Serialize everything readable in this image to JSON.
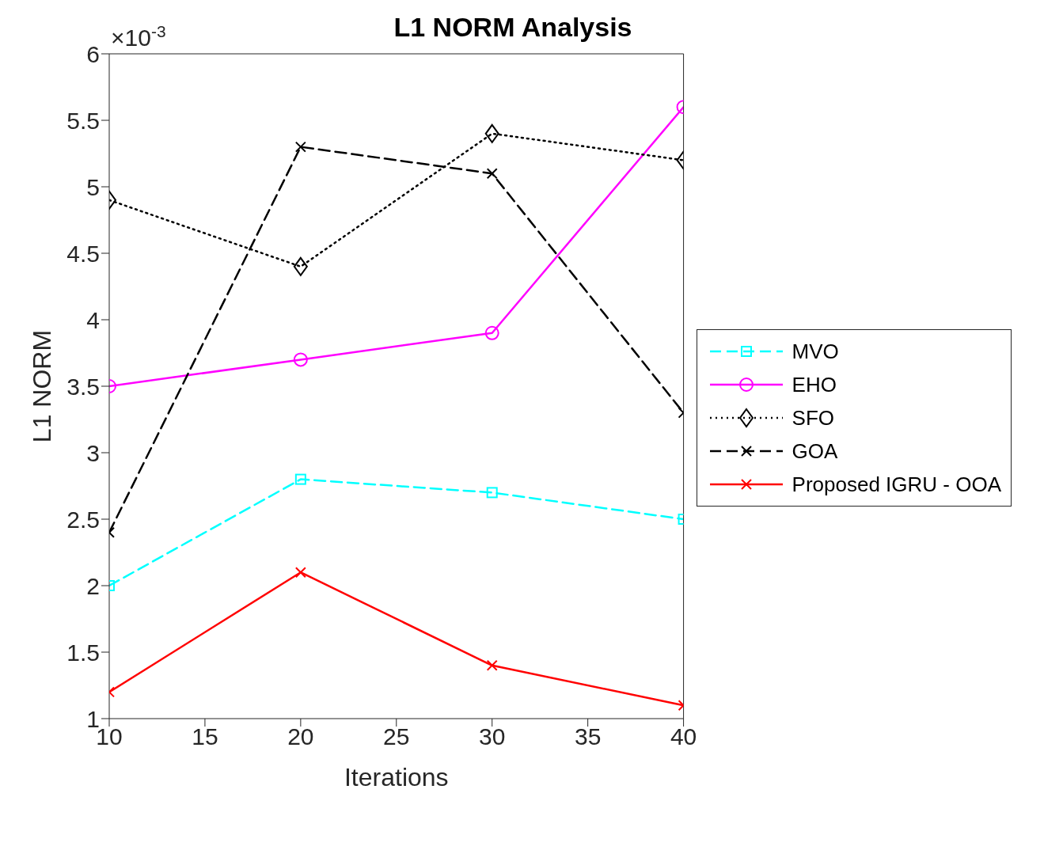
{
  "chart_data": {
    "type": "line",
    "title": "L1 NORM Analysis",
    "xlabel": "Iterations",
    "ylabel": "L1 NORM",
    "annotations": [
      "×10$^{-3}$"
    ],
    "x": [
      10,
      20,
      30,
      40
    ],
    "series": [
      {
        "name": "MVO",
        "color": "#00ffff",
        "values": [
          2.0,
          2.8,
          2.7,
          2.5
        ],
        "marker": "square",
        "line_style": "dashed"
      },
      {
        "name": "EHO",
        "color": "#ff00ff",
        "values": [
          3.5,
          3.7,
          3.9,
          5.6
        ],
        "marker": "circle",
        "line_style": "solid"
      },
      {
        "name": "SFO",
        "color": "#000000",
        "values": [
          4.9,
          4.4,
          5.4,
          5.2
        ],
        "marker": "diamond",
        "line_style": "dotted"
      },
      {
        "name": "GOA",
        "color": "#000000",
        "values": [
          2.4,
          5.3,
          5.1,
          3.3
        ],
        "marker": "cross",
        "line_style": "dashed"
      },
      {
        "name": "Proposed IGRU - OOA",
        "color": "#ff0000",
        "values": [
          1.2,
          2.1,
          1.4,
          1.1
        ],
        "marker": "cross",
        "line_style": "solid"
      }
    ],
    "xlim": [
      10,
      40
    ],
    "xticks": [
      10,
      15,
      20,
      25,
      30,
      35,
      40
    ],
    "ylim": [
      1,
      6
    ],
    "yticks": [
      1,
      1.5,
      2,
      2.5,
      3,
      3.5,
      4,
      4.5,
      5,
      5.5,
      6
    ],
    "grid": false,
    "legend": "right"
  }
}
